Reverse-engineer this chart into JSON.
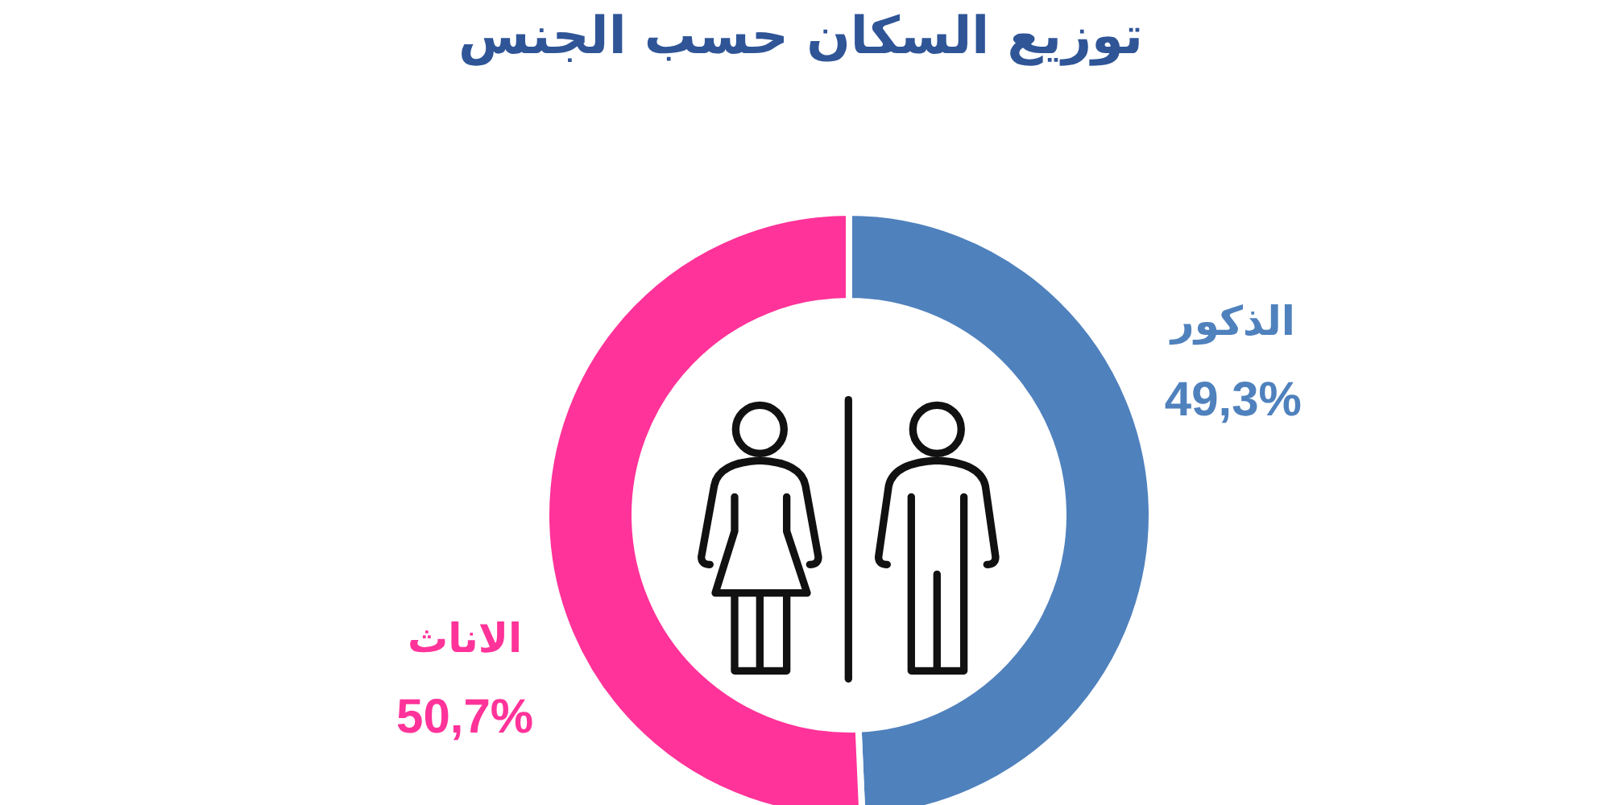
{
  "chart_data": {
    "type": "donut",
    "title": "توزيع السكان حسب الجنس",
    "categories": [
      "الذكور",
      "الاناث"
    ],
    "values": [
      49.3,
      50.7
    ],
    "colors": [
      "#4f81bd",
      "#ff3399"
    ],
    "value_labels": [
      "49,3%",
      "50,7%"
    ]
  }
}
